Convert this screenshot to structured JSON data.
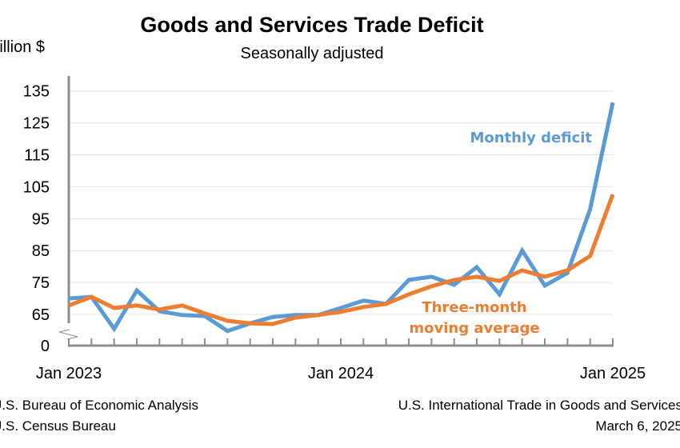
{
  "chart_data": {
    "type": "line",
    "title": "Goods and Services Trade Deficit",
    "subtitle": "Seasonally adjusted",
    "ylabel": "Billion $",
    "xlabel": "",
    "y_ticks": [
      "0",
      "65",
      "75",
      "85",
      "95",
      "105",
      "115",
      "125",
      "135"
    ],
    "ylim": [
      0,
      135
    ],
    "axis_break": "between 0 and 65",
    "x_tick_labels": [
      "Jan 2023",
      "Jan 2024",
      "Jan 2025"
    ],
    "x": [
      "Jan 2023",
      "Feb 2023",
      "Mar 2023",
      "Apr 2023",
      "May 2023",
      "Jun 2023",
      "Jul 2023",
      "Aug 2023",
      "Sep 2023",
      "Oct 2023",
      "Nov 2023",
      "Dec 2023",
      "Jan 2024",
      "Feb 2024",
      "Mar 2024",
      "Apr 2024",
      "May 2024",
      "Jun 2024",
      "Jul 2024",
      "Aug 2024",
      "Sep 2024",
      "Oct 2024",
      "Nov 2024",
      "Dec 2024",
      "Jan 2025"
    ],
    "grid": true,
    "series": [
      {
        "name": "Monthly deficit",
        "color": "#5b9bd5",
        "values": [
          70.0,
          70.5,
          60.5,
          72.5,
          66.0,
          64.8,
          64.5,
          59.8,
          62.2,
          64.2,
          64.8,
          64.8,
          67.0,
          69.3,
          68.3,
          75.8,
          76.8,
          74.3,
          79.8,
          71.3,
          85.0,
          74.0,
          78.0,
          98.0,
          131.4
        ]
      },
      {
        "name": "Three-month moving average",
        "label_lines": [
          "Three-month",
          "moving average"
        ],
        "color": "#ed7d31",
        "values": [
          67.8,
          70.5,
          67.0,
          67.8,
          66.5,
          67.8,
          65.3,
          63.0,
          62.2,
          62.0,
          64.0,
          64.8,
          65.8,
          67.3,
          68.3,
          71.3,
          73.8,
          75.8,
          76.8,
          75.5,
          78.8,
          76.8,
          78.8,
          83.3,
          102.6
        ]
      }
    ]
  },
  "footer": {
    "source_line1": "U.S. Bureau of Economic Analysis",
    "source_line2": "U.S. Census Bureau",
    "release_line1": "U.S. International Trade in Goods and Services",
    "release_line2": "March 6, 2025"
  }
}
